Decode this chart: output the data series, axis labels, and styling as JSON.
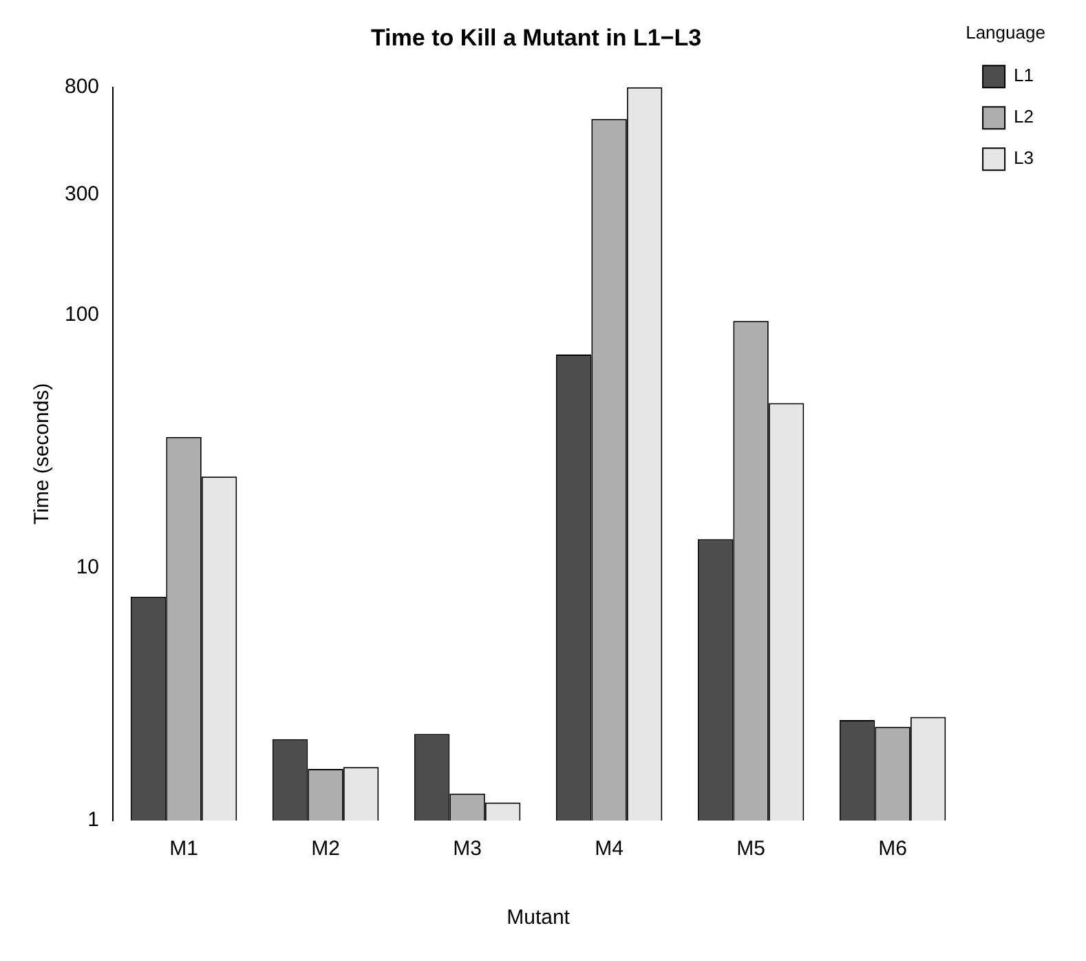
{
  "chart_data": {
    "type": "bar",
    "title": "Time to Kill a Mutant in L1−L3",
    "xlabel": "Mutant",
    "ylabel": "Time (seconds)",
    "legend_title": "Language",
    "categories": [
      "M1",
      "M2",
      "M3",
      "M4",
      "M5",
      "M6"
    ],
    "series": [
      {
        "name": "L1",
        "color": "#4d4d4d",
        "values": [
          7.7,
          2.1,
          2.2,
          70,
          13,
          2.5
        ]
      },
      {
        "name": "L2",
        "color": "#aeaeae",
        "values": [
          33,
          1.6,
          1.28,
          600,
          95,
          2.35
        ]
      },
      {
        "name": "L3",
        "color": "#e6e6e6",
        "values": [
          23,
          1.63,
          1.18,
          800,
          45,
          2.57
        ]
      }
    ],
    "log": true,
    "ylim": [
      1,
      800
    ],
    "yticks": [
      1,
      10,
      100,
      300,
      800
    ],
    "grid": false,
    "legend": "top right"
  }
}
